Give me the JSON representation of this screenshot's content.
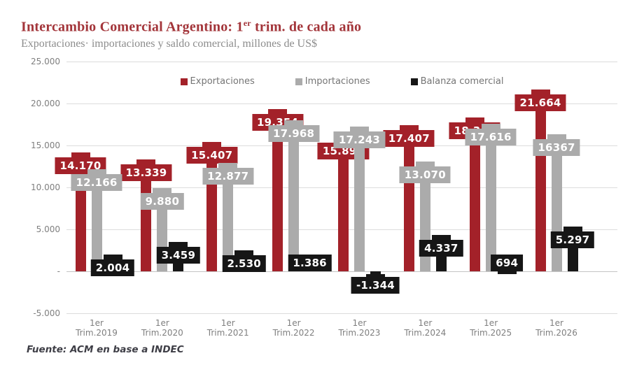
{
  "title": {
    "prefix": "Intercambio Comercial Argentino: 1",
    "sup": "er",
    "suffix": " trim. de cada año"
  },
  "subtitle": "Exportaciones· importaciones y saldo comercial, millones de US$",
  "footer": "Fuente: ACM en base a INDEC",
  "colors": {
    "title_text": "#A3353A",
    "subtitle_text": "#8C8C8C",
    "axis_text": "#7F7F7F",
    "legend_text": "#757575",
    "gridline": "#DCDCDC",
    "zero_line": "#C4C4C4",
    "export_red": "#A32129",
    "import_gray": "#ABABAB",
    "balance_black": "#161616"
  },
  "chart_data": {
    "type": "bar",
    "title": "Intercambio Comercial Argentino: 1er trim. de cada año",
    "subtitle": "Exportaciones· importaciones y saldo comercial, millones de US$",
    "unit": "millones de US$",
    "grid": true,
    "legend_position": "top-center",
    "ylim": [
      -5000,
      25000
    ],
    "y_ticks": [
      "25.000",
      "20.000",
      "15.000",
      "10.000",
      "5.000",
      "-",
      "-5.000"
    ],
    "categories": [
      {
        "l1": "1er",
        "l2": "Trim.2019"
      },
      {
        "l1": "1er",
        "l2": "Trim.2020"
      },
      {
        "l1": "1er",
        "l2": "Trim.2021"
      },
      {
        "l1": "1er",
        "l2": "Trim.2022"
      },
      {
        "l1": "1er",
        "l2": "Trim.2023"
      },
      {
        "l1": "1er",
        "l2": "Trim.2024"
      },
      {
        "l1": "1er",
        "l2": "Trim.2025"
      },
      {
        "l1": "1er",
        "l2": "Trim.2026"
      }
    ],
    "series": [
      {
        "name": "Exportaciones",
        "color": "#A32129",
        "values": [
          14170,
          13339,
          15407,
          19354,
          15899,
          17407,
          18310,
          21664
        ],
        "labels": [
          "14.170",
          "13.339",
          "15.407",
          "19.354",
          "15.899",
          "17.407",
          "18.310",
          "21.664"
        ]
      },
      {
        "name": "Importaciones",
        "color": "#ABABAB",
        "values": [
          12166,
          9880,
          12877,
          17968,
          17243,
          13070,
          17616,
          16367
        ],
        "labels": [
          "12.166",
          "9.880",
          "12.877",
          "17.968",
          "17.243",
          "13.070",
          "17.616",
          "16367"
        ]
      },
      {
        "name": "Balanza comercial",
        "color": "#161616",
        "values": [
          2004,
          3459,
          2530,
          1386,
          -1344,
          4337,
          694,
          5297
        ],
        "labels": [
          "2.004",
          "3.459",
          "2.530",
          "1.386",
          "-1.344",
          "4.337",
          "694",
          "5.297"
        ]
      }
    ]
  }
}
